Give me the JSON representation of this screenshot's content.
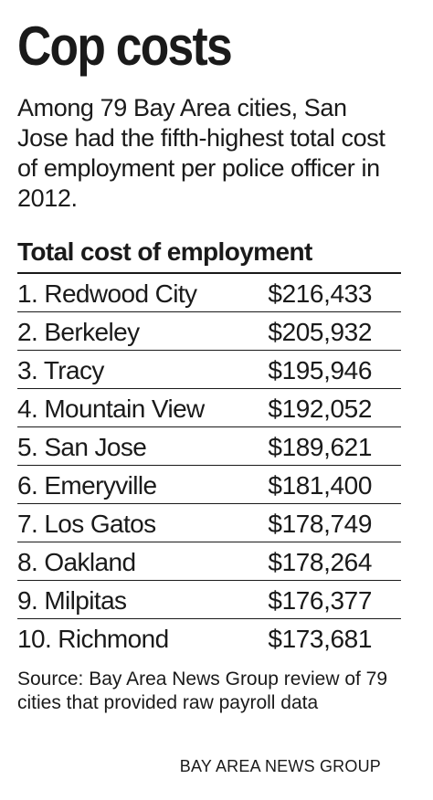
{
  "chart_data": {
    "type": "table",
    "title": "Cop costs",
    "subtitle": "Among 79 Bay Area cities, San Jose had the fifth-highest total cost of employment per police officer in 2012.",
    "column_header": "Total cost of employment",
    "rows": [
      {
        "rank_name": "1. Redwood City",
        "value": "$216,433"
      },
      {
        "rank_name": "2. Berkeley",
        "value": "$205,932"
      },
      {
        "rank_name": "3. Tracy",
        "value": "$195,946"
      },
      {
        "rank_name": "4. Mountain View",
        "value": "$192,052"
      },
      {
        "rank_name": "5. San Jose",
        "value": "$189,621"
      },
      {
        "rank_name": "6. Emeryville",
        "value": "$181,400"
      },
      {
        "rank_name": "7. Los Gatos",
        "value": "$178,749"
      },
      {
        "rank_name": "8. Oakland",
        "value": "$178,264"
      },
      {
        "rank_name": "9. Milpitas",
        "value": "$176,377"
      },
      {
        "rank_name": "10. Richmond",
        "value": "$173,681"
      }
    ],
    "source": "Source: Bay Area News Group review of 79 cities that provided raw payroll data",
    "credit": "BAY AREA NEWS GROUP"
  }
}
